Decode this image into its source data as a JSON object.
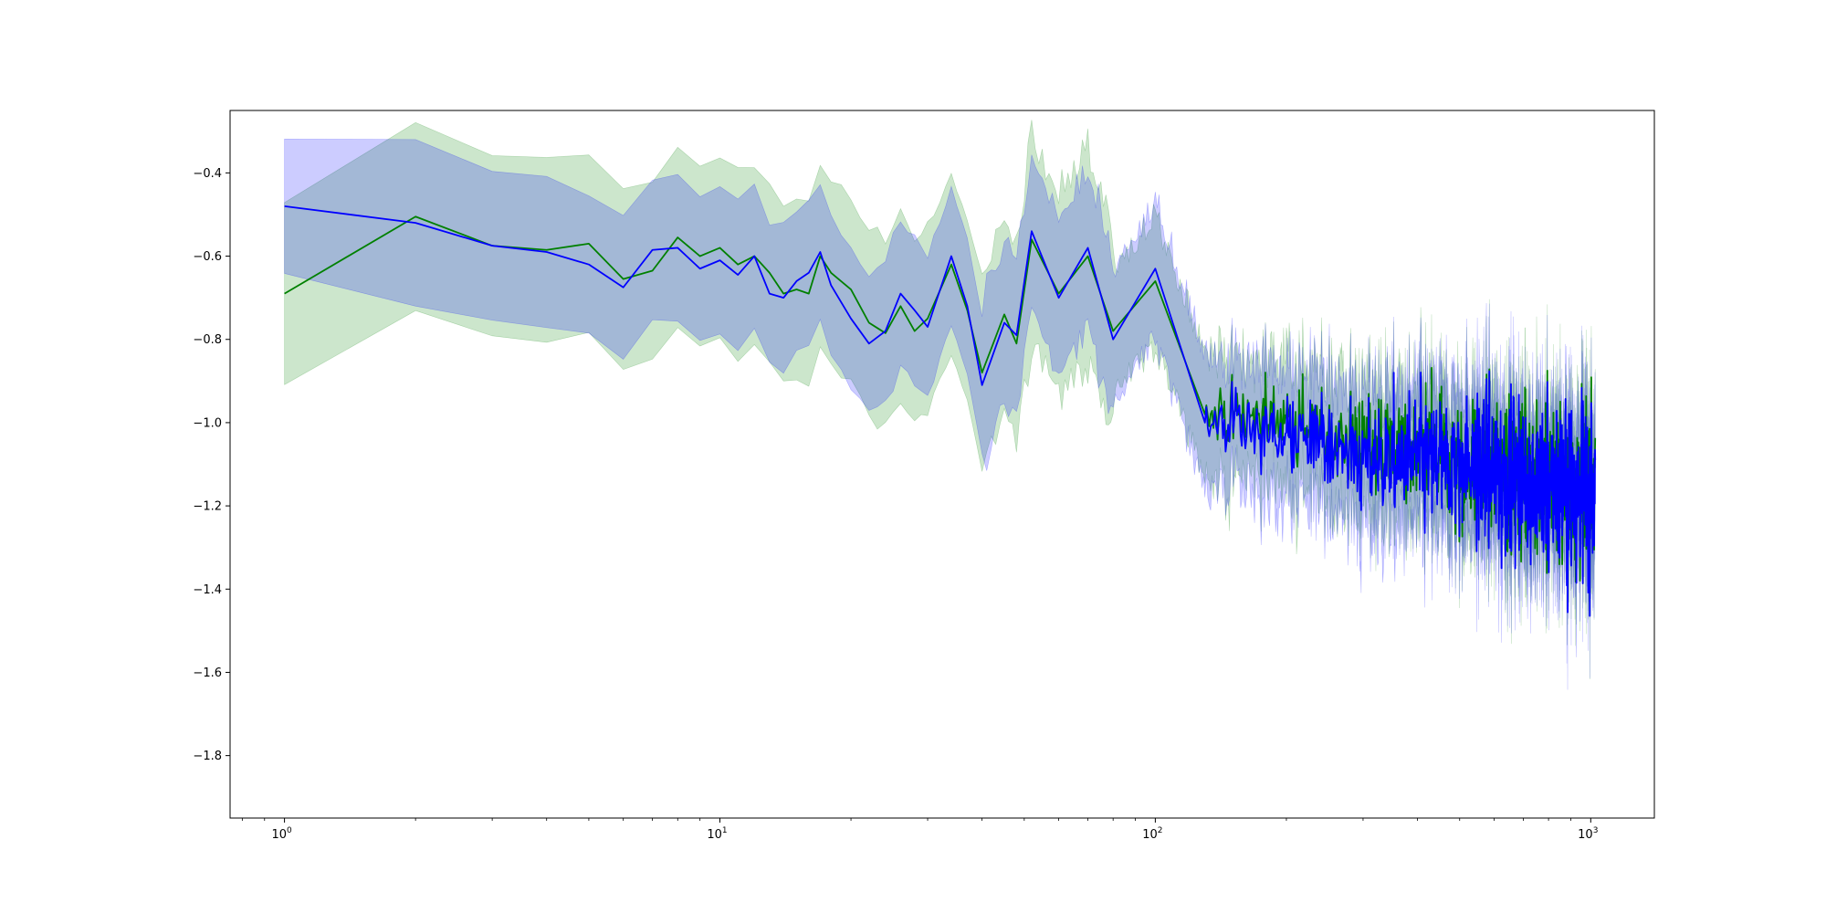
{
  "chart_data": {
    "type": "line",
    "title": "",
    "xlabel": "",
    "ylabel": "",
    "x_scale": "log",
    "xlim": [
      0.75,
      1400
    ],
    "ylim": [
      -1.95,
      -0.25
    ],
    "x_tick_values": [
      1,
      10,
      100,
      1000
    ],
    "x_tick_labels": [
      {
        "base": "10",
        "exp": "0"
      },
      {
        "base": "10",
        "exp": "1"
      },
      {
        "base": "10",
        "exp": "2"
      },
      {
        "base": "10",
        "exp": "3"
      }
    ],
    "y_ticks": [
      -0.4,
      -0.6,
      -0.8,
      -1.0,
      -1.2,
      -1.4,
      -1.6,
      -1.8
    ],
    "y_tick_labels": [
      "−0.4",
      "−0.6",
      "−0.8",
      "−1.0",
      "−1.2",
      "−1.4",
      "−1.6",
      "−1.8"
    ],
    "grid": false,
    "legend": "none",
    "x_range": [
      1,
      1024
    ],
    "series": [
      {
        "color": "#008000",
        "band_color": "#008000",
        "band_opacity": 0.2,
        "band_halfwidth_early": 0.21,
        "band_halfwidth_late": 0.12,
        "anchors": [
          [
            1,
            -0.69
          ],
          [
            2,
            -0.505
          ],
          [
            3,
            -0.575
          ],
          [
            4,
            -0.585
          ],
          [
            5,
            -0.57
          ],
          [
            6,
            -0.655
          ],
          [
            7,
            -0.635
          ],
          [
            8,
            -0.555
          ],
          [
            9,
            -0.6
          ],
          [
            10,
            -0.58
          ],
          [
            11,
            -0.62
          ],
          [
            12,
            -0.6
          ],
          [
            13,
            -0.64
          ],
          [
            14,
            -0.69
          ],
          [
            15,
            -0.68
          ],
          [
            16,
            -0.69
          ],
          [
            17,
            -0.6
          ],
          [
            18,
            -0.64
          ],
          [
            20,
            -0.68
          ],
          [
            22,
            -0.76
          ],
          [
            24,
            -0.785
          ],
          [
            26,
            -0.72
          ],
          [
            28,
            -0.78
          ],
          [
            30,
            -0.75
          ],
          [
            34,
            -0.62
          ],
          [
            37,
            -0.73
          ],
          [
            40,
            -0.88
          ],
          [
            45,
            -0.74
          ],
          [
            48,
            -0.81
          ],
          [
            52,
            -0.56
          ],
          [
            60,
            -0.69
          ],
          [
            70,
            -0.6
          ],
          [
            80,
            -0.78
          ],
          [
            100,
            -0.66
          ],
          [
            130,
            -0.98
          ],
          [
            200,
            -1.0
          ],
          [
            300,
            -1.05
          ],
          [
            500,
            -1.1
          ],
          [
            1024,
            -1.15
          ]
        ]
      },
      {
        "color": "#0000ff",
        "band_color": "#0000ff",
        "band_opacity": 0.2,
        "band_halfwidth_early": 0.16,
        "band_halfwidth_late": 0.13,
        "anchors": [
          [
            1,
            -0.48
          ],
          [
            2,
            -0.52
          ],
          [
            3,
            -0.575
          ],
          [
            4,
            -0.59
          ],
          [
            5,
            -0.62
          ],
          [
            6,
            -0.675
          ],
          [
            7,
            -0.585
          ],
          [
            8,
            -0.58
          ],
          [
            9,
            -0.63
          ],
          [
            10,
            -0.61
          ],
          [
            11,
            -0.645
          ],
          [
            12,
            -0.6
          ],
          [
            13,
            -0.69
          ],
          [
            14,
            -0.7
          ],
          [
            15,
            -0.66
          ],
          [
            16,
            -0.64
          ],
          [
            17,
            -0.59
          ],
          [
            18,
            -0.67
          ],
          [
            20,
            -0.75
          ],
          [
            22,
            -0.81
          ],
          [
            24,
            -0.78
          ],
          [
            26,
            -0.69
          ],
          [
            28,
            -0.73
          ],
          [
            30,
            -0.77
          ],
          [
            34,
            -0.6
          ],
          [
            37,
            -0.72
          ],
          [
            40,
            -0.91
          ],
          [
            45,
            -0.76
          ],
          [
            48,
            -0.79
          ],
          [
            52,
            -0.54
          ],
          [
            60,
            -0.7
          ],
          [
            70,
            -0.58
          ],
          [
            80,
            -0.8
          ],
          [
            100,
            -0.63
          ],
          [
            130,
            -1.0
          ],
          [
            200,
            -1.02
          ],
          [
            300,
            -1.08
          ],
          [
            500,
            -1.1
          ],
          [
            1024,
            -1.17
          ]
        ]
      }
    ]
  }
}
